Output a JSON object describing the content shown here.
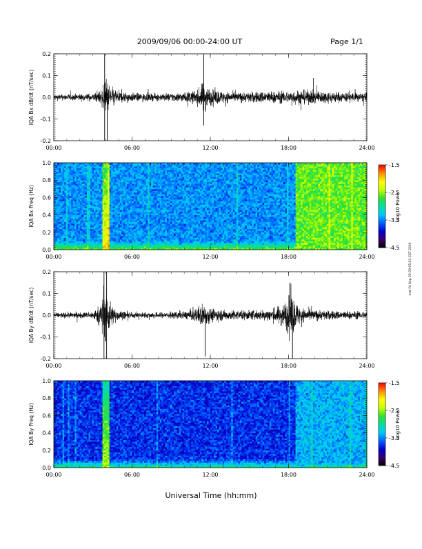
{
  "header": {
    "date_range": "2009/09/06  00:00-24:00 UT",
    "page": "Page 1/1"
  },
  "side_note": "mst Fri Sep 25 09:05:51 CST 2009",
  "footer": {
    "xlabel": "Universal Time (hh:mm)"
  },
  "colors": {
    "trace": "#000000",
    "colormap": [
      "#000000",
      "#3a006a",
      "#0000d0",
      "#0060ff",
      "#00c8ff",
      "#00e0a0",
      "#30e030",
      "#c8ff00",
      "#ffff00",
      "#ff9000",
      "#ff0000"
    ]
  },
  "chart_data": [
    {
      "type": "line",
      "ylabel": "IQA Bx dB/dt (nT/sec)",
      "ylim": [
        -0.2,
        0.2
      ],
      "yticks": [
        "-0.2",
        "-0.1",
        "0.0",
        "0.1",
        "0.2"
      ],
      "yticks_values": [
        -0.2,
        -0.1,
        0.0,
        0.1,
        0.2
      ],
      "xlim": [
        0,
        24
      ],
      "xticks": [
        "00:00",
        "06:00",
        "12:00",
        "18:00",
        "24:00"
      ],
      "series": [
        {
          "x": [
            0,
            1,
            2,
            3,
            3.6,
            3.9,
            4.0,
            4.2,
            4.5,
            5,
            6,
            7,
            8,
            9,
            10,
            10.5,
            11,
            11.4,
            11.5,
            11.7,
            12,
            12.5,
            13,
            14,
            15,
            16,
            17,
            18,
            18.5,
            19,
            20,
            21,
            22,
            23,
            24
          ],
          "amp": [
            0.012,
            0.013,
            0.014,
            0.016,
            0.03,
            0.06,
            0.08,
            0.06,
            0.04,
            0.025,
            0.018,
            0.016,
            0.015,
            0.018,
            0.02,
            0.025,
            0.03,
            0.06,
            0.07,
            0.05,
            0.035,
            0.03,
            0.025,
            0.02,
            0.022,
            0.025,
            0.025,
            0.025,
            0.03,
            0.03,
            0.028,
            0.025,
            0.022,
            0.02,
            0.018
          ]
        }
      ],
      "spikes": [
        {
          "t": 3.9,
          "value": -0.2
        },
        {
          "t": 3.9,
          "value": 0.2
        },
        {
          "t": 4.1,
          "value": -0.2
        },
        {
          "t": 11.5,
          "value": 0.2
        },
        {
          "t": 11.5,
          "value": -0.13
        }
      ]
    },
    {
      "type": "heatmap",
      "ylabel": "IQA Bx Freq (Hz)",
      "ylim": [
        0,
        1.0
      ],
      "yticks": [
        "0.0",
        "0.2",
        "0.4",
        "0.6",
        "0.8",
        "1.0"
      ],
      "yticks_values": [
        0,
        0.2,
        0.4,
        0.6,
        0.8,
        1.0
      ],
      "xlim": [
        0,
        24
      ],
      "xticks": [
        "00:00",
        "06:00",
        "12:00",
        "18:00",
        "24:00"
      ],
      "colorbar": {
        "label": "Log10 Power",
        "range": [
          -4.5,
          -1.5
        ],
        "ticks": [
          "-1.5",
          "-2.5",
          "-3.5",
          "-4.5"
        ],
        "ticks_values": [
          -1.5,
          -2.5,
          -3.5,
          -4.5
        ]
      },
      "background_level": -3.45,
      "low_freq_level": -2.6,
      "features": [
        {
          "t_start": 3.7,
          "t_end": 4.3,
          "level": -2.1
        },
        {
          "t_start": 18.6,
          "t_end": 24.0,
          "level": -2.6
        }
      ]
    },
    {
      "type": "line",
      "ylabel": "IQA By dB/dt (nT/sec)",
      "ylim": [
        -0.2,
        0.2
      ],
      "yticks": [
        "-0.2",
        "-0.1",
        "0.0",
        "0.1",
        "0.2"
      ],
      "yticks_values": [
        -0.2,
        -0.1,
        0.0,
        0.1,
        0.2
      ],
      "xlim": [
        0,
        24
      ],
      "xticks": [
        "00:00",
        "06:00",
        "12:00",
        "18:00",
        "24:00"
      ],
      "series": [
        {
          "x": [
            0,
            1,
            2,
            3,
            3.5,
            3.8,
            4.0,
            4.2,
            4.5,
            5,
            6,
            7,
            8,
            9,
            10,
            11,
            11.3,
            11.6,
            12,
            13,
            14,
            15,
            16,
            17,
            17.8,
            18.2,
            18.5,
            19,
            20,
            21,
            22,
            23,
            24
          ],
          "amp": [
            0.01,
            0.012,
            0.012,
            0.015,
            0.04,
            0.09,
            0.12,
            0.08,
            0.04,
            0.02,
            0.012,
            0.012,
            0.012,
            0.014,
            0.016,
            0.03,
            0.05,
            0.045,
            0.03,
            0.022,
            0.02,
            0.02,
            0.022,
            0.03,
            0.06,
            0.1,
            0.06,
            0.03,
            0.022,
            0.02,
            0.018,
            0.016,
            0.015
          ]
        }
      ],
      "spikes": [
        {
          "t": 3.85,
          "value": -0.2
        },
        {
          "t": 3.85,
          "value": 0.2
        },
        {
          "t": 4.05,
          "value": 0.2
        },
        {
          "t": 4.05,
          "value": -0.2
        },
        {
          "t": 11.6,
          "value": -0.19
        },
        {
          "t": 18.3,
          "value": -0.2
        },
        {
          "t": 18.1,
          "value": 0.15
        }
      ]
    },
    {
      "type": "heatmap",
      "ylabel": "IQA By Freq (Hz)",
      "ylim": [
        0,
        1.0
      ],
      "yticks": [
        "0.0",
        "0.2",
        "0.4",
        "0.6",
        "0.8",
        "1.0"
      ],
      "yticks_values": [
        0,
        0.2,
        0.4,
        0.6,
        0.8,
        1.0
      ],
      "xlim": [
        0,
        24
      ],
      "xticks": [
        "00:00",
        "06:00",
        "12:00",
        "18:00",
        "24:00"
      ],
      "colorbar": {
        "label": "Log10 Power",
        "range": [
          -4.5,
          -1.5
        ],
        "ticks": [
          "-1.5",
          "-2.5",
          "-3.5",
          "-4.5"
        ],
        "ticks_values": [
          -1.5,
          -2.5,
          -3.5,
          -4.5
        ]
      },
      "background_level": -3.75,
      "low_freq_level": -2.9,
      "features": [
        {
          "t_start": 3.7,
          "t_end": 4.3,
          "level": -2.4
        },
        {
          "t_start": 18.6,
          "t_end": 24.0,
          "level": -3.35
        }
      ]
    }
  ]
}
